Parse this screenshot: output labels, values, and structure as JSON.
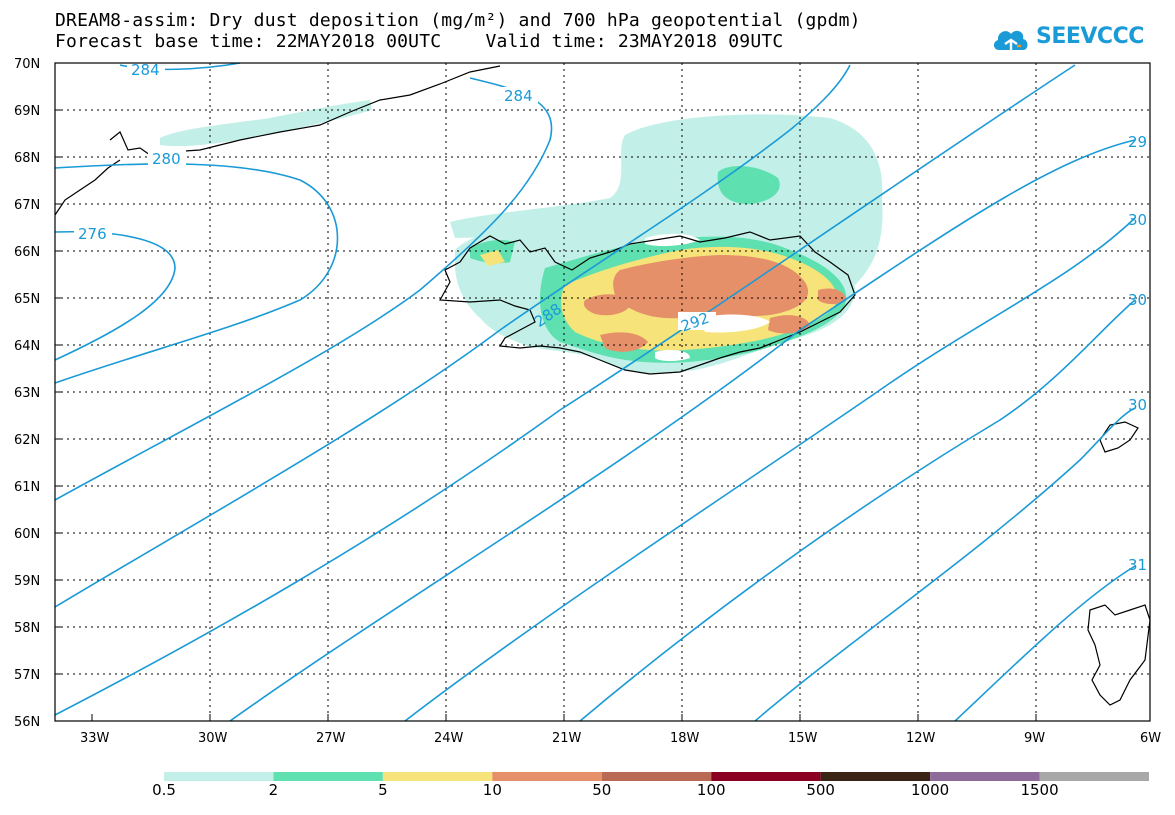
{
  "title": {
    "line1": "DREAM8-assim: Dry dust deposition (mg/m²) and 700 hPa geopotential (gpdm)",
    "line2": "Forecast base time: 22MAY2018 00UTC    Valid time: 23MAY2018 09UTC"
  },
  "logo": {
    "text": "SEEVCCC",
    "icon": "cloud-icon",
    "color": "#1a9ad6"
  },
  "map": {
    "lat_labels": [
      "70N",
      "69N",
      "68N",
      "67N",
      "66N",
      "65N",
      "64N",
      "63N",
      "62N",
      "61N",
      "60N",
      "59N",
      "58N",
      "57N",
      "56N"
    ],
    "lon_labels": [
      "33W",
      "30W",
      "27W",
      "24W",
      "21W",
      "18W",
      "15W",
      "12W",
      "9W",
      "6W"
    ],
    "contour_color": "#1a9ad6",
    "contour_labels": [
      "284",
      "284",
      "280",
      "276",
      "288",
      "292",
      "29",
      "30",
      "30",
      "30",
      "31"
    ]
  },
  "legend": {
    "colors": [
      "#c2f0e8",
      "#5fe0b0",
      "#f6e47a",
      "#e6906a",
      "#b86a55",
      "#8b0020",
      "#3a2415",
      "#8e6b9a",
      "#a8a8a8"
    ],
    "labels": [
      "0.5",
      "2",
      "5",
      "10",
      "50",
      "100",
      "500",
      "1000",
      "1500"
    ]
  }
}
